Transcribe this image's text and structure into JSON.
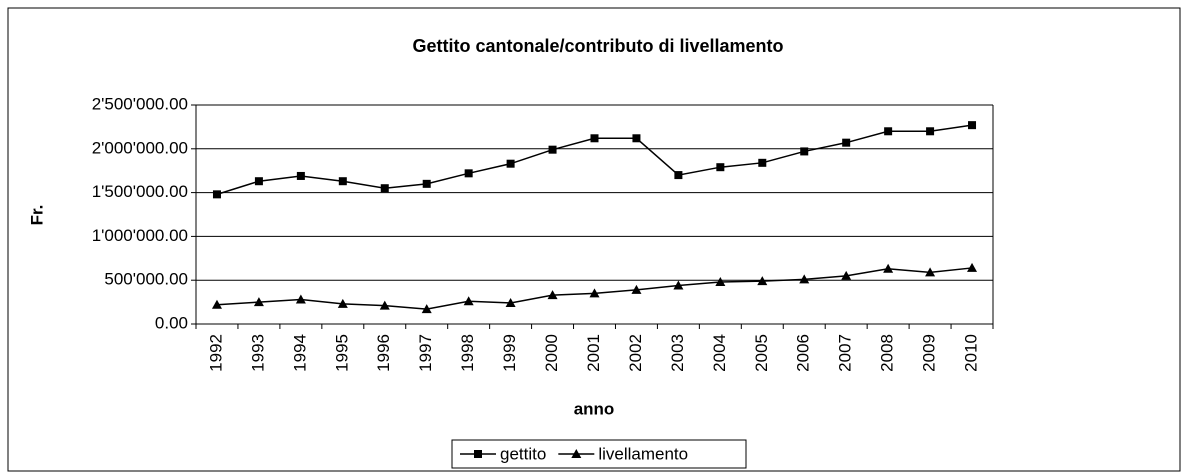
{
  "chart_data": {
    "type": "line",
    "title": "Gettito cantonale/contributo di livellamento",
    "xlabel": "anno",
    "ylabel": "Fr.",
    "categories": [
      "1992",
      "1993",
      "1994",
      "1995",
      "1996",
      "1997",
      "1998",
      "1999",
      "2000",
      "2001",
      "2002",
      "2003",
      "2004",
      "2005",
      "2006",
      "2007",
      "2008",
      "2009",
      "2010"
    ],
    "series": [
      {
        "name": "gettito",
        "color": "#000000",
        "marker": "square",
        "values": [
          1480000,
          1630000,
          1690000,
          1630000,
          1550000,
          1600000,
          1720000,
          1830000,
          1990000,
          2120000,
          2120000,
          1700000,
          1790000,
          1840000,
          1970000,
          2070000,
          2200000,
          2200000,
          2270000
        ]
      },
      {
        "name": "livellamento",
        "color": "#000000",
        "marker": "triangle",
        "values": [
          220000,
          250000,
          280000,
          230000,
          210000,
          170000,
          260000,
          240000,
          330000,
          350000,
          390000,
          440000,
          480000,
          490000,
          510000,
          550000,
          630000,
          590000,
          640000
        ]
      }
    ],
    "ylim": [
      0,
      2500000
    ],
    "yticks": [
      {
        "value": 0,
        "label": "0.00"
      },
      {
        "value": 500000,
        "label": "500'000.00"
      },
      {
        "value": 1000000,
        "label": "1'000'000.00"
      },
      {
        "value": 1500000,
        "label": "1'500'000.00"
      },
      {
        "value": 2000000,
        "label": "2'000'000.00"
      },
      {
        "value": 2500000,
        "label": "2'500'000.00"
      }
    ],
    "grid": true,
    "legend": "bottom"
  }
}
